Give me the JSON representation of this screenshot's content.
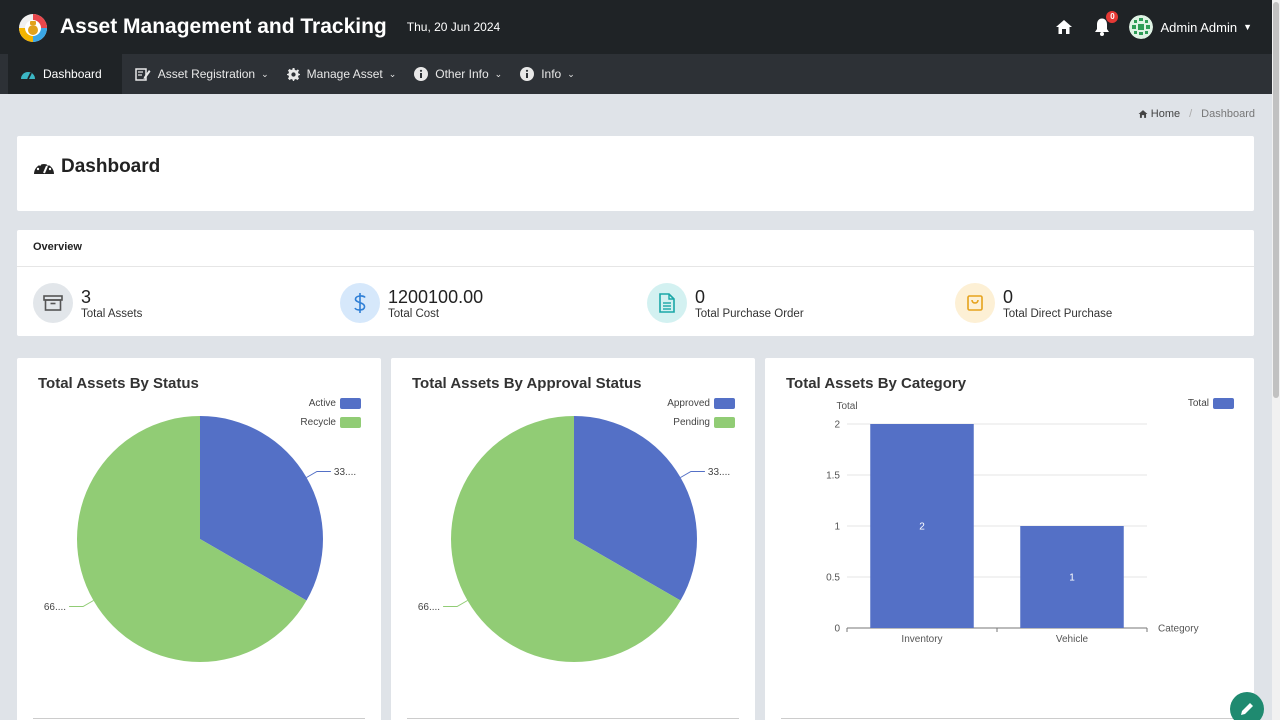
{
  "header": {
    "app_title": "Asset Management and Tracking",
    "date": "Thu, 20 Jun 2024",
    "notification_count": "0",
    "user_name": "Admin Admin"
  },
  "nav": {
    "items": [
      {
        "label": "Dashboard",
        "icon": "gauge-icon",
        "has_dropdown": false
      },
      {
        "label": "Asset Registration",
        "icon": "registration-icon",
        "has_dropdown": true
      },
      {
        "label": "Manage Asset",
        "icon": "gear-icon",
        "has_dropdown": true
      },
      {
        "label": "Other Info",
        "icon": "info-icon",
        "has_dropdown": true
      },
      {
        "label": "Info",
        "icon": "info-icon",
        "has_dropdown": true
      }
    ]
  },
  "breadcrumb": {
    "home": "Home",
    "current": "Dashboard"
  },
  "page": {
    "title": "Dashboard"
  },
  "overview": {
    "title": "Overview",
    "stats": [
      {
        "value": "3",
        "label": "Total Assets",
        "icon": "archive-icon",
        "bg": "#e2e6ea",
        "fg": "#555555"
      },
      {
        "value": "1200100.00",
        "label": "Total Cost",
        "icon": "dollar-icon",
        "bg": "#d6e8fb",
        "fg": "#2f7fd6"
      },
      {
        "value": "0",
        "label": "Total Purchase Order",
        "icon": "document-icon",
        "bg": "#d3f1f1",
        "fg": "#1aa7a7"
      },
      {
        "value": "0",
        "label": "Total Direct Purchase",
        "icon": "shopping-bag-icon",
        "bg": "#fdf0d5",
        "fg": "#e6a21c"
      }
    ]
  },
  "colors": {
    "blue": "#5470c6",
    "green": "#91cc75"
  },
  "chart_data": [
    {
      "type": "pie",
      "title": "Total Assets By Status",
      "labels": [
        "Active",
        "Recycle"
      ],
      "values": [
        1,
        2
      ],
      "slice_labels": [
        "33....",
        "66...."
      ],
      "legend": "top-right"
    },
    {
      "type": "pie",
      "title": "Total Assets By Approval Status",
      "labels": [
        "Approved",
        "Pending"
      ],
      "values": [
        1,
        2
      ],
      "slice_labels": [
        "33....",
        "66...."
      ],
      "legend": "top-right"
    },
    {
      "type": "bar",
      "title": "Total Assets By Category",
      "categories": [
        "Inventory",
        "Vehicle"
      ],
      "series": [
        {
          "name": "Total",
          "values": [
            2,
            1
          ]
        }
      ],
      "xlabel": "Category",
      "ylabel": "Total",
      "ylim": [
        0,
        2
      ],
      "yticks": [
        "0",
        "0.5",
        "1",
        "1.5",
        "2"
      ],
      "grid": true,
      "legend": "top-right"
    }
  ]
}
